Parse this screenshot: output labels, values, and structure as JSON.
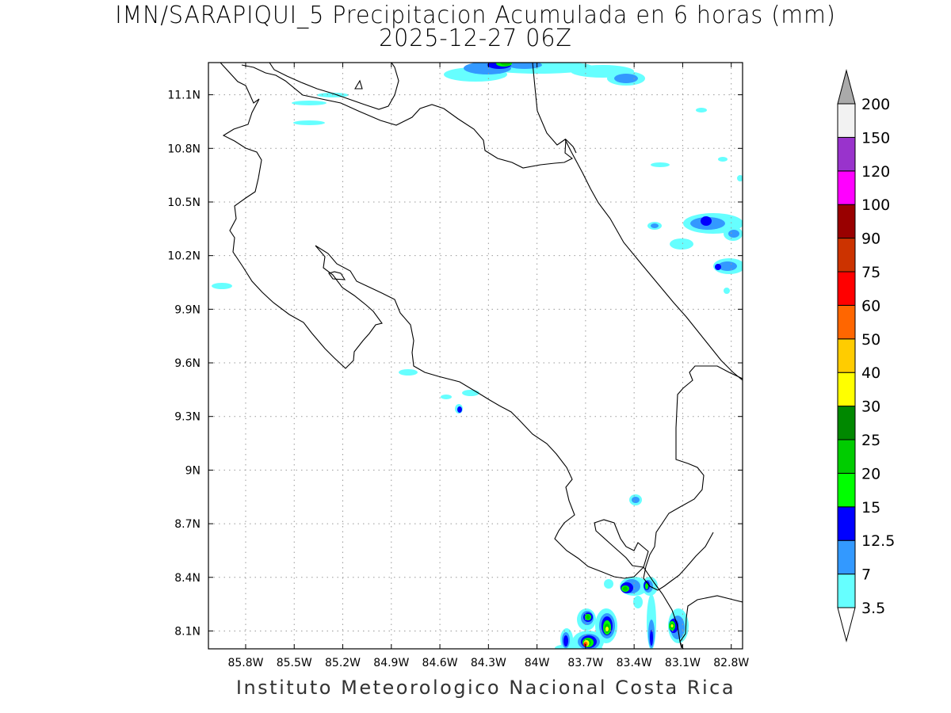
{
  "header": {
    "title": "IMN/SARAPIQUI_5 Precipitacion Acumulada en 6 horas (mm)",
    "subtitle": "2025-12-27 06Z"
  },
  "footer": {
    "credit": "Instituto Meteorologico Nacional Costa Rica"
  },
  "map": {
    "lon_range": [
      -86.03,
      -82.73
    ],
    "lat_range": [
      8.0,
      11.28
    ],
    "x_ticks": [
      {
        "value": -85.8,
        "label": "85.8W"
      },
      {
        "value": -85.5,
        "label": "85.5W"
      },
      {
        "value": -85.2,
        "label": "85.2W"
      },
      {
        "value": -84.9,
        "label": "84.9W"
      },
      {
        "value": -84.6,
        "label": "84.6W"
      },
      {
        "value": -84.3,
        "label": "84.3W"
      },
      {
        "value": -84.0,
        "label": "84W"
      },
      {
        "value": -83.7,
        "label": "83.7W"
      },
      {
        "value": -83.4,
        "label": "83.4W"
      },
      {
        "value": -83.1,
        "label": "83.1W"
      },
      {
        "value": -82.8,
        "label": "82.8W"
      }
    ],
    "y_ticks": [
      {
        "value": 11.1,
        "label": "11.1N"
      },
      {
        "value": 10.8,
        "label": "10.8N"
      },
      {
        "value": 10.5,
        "label": "10.5N"
      },
      {
        "value": 10.2,
        "label": "10.2N"
      },
      {
        "value": 9.9,
        "label": "9.9N"
      },
      {
        "value": 9.6,
        "label": "9.6N"
      },
      {
        "value": 9.3,
        "label": "9.3N"
      },
      {
        "value": 9.0,
        "label": "9N"
      },
      {
        "value": 8.7,
        "label": "8.7N"
      },
      {
        "value": 8.4,
        "label": "8.4N"
      },
      {
        "value": 8.1,
        "label": "8.1N"
      }
    ],
    "grid": true,
    "grid_style": "dotted",
    "coastline_color": "#000000"
  },
  "colorbar": {
    "levels": [
      {
        "label": "3.5",
        "color": "#66ffff"
      },
      {
        "label": "7",
        "color": "#3399ff"
      },
      {
        "label": "12.5",
        "color": "#0000ff"
      },
      {
        "label": "15",
        "color": "#00ff00"
      },
      {
        "label": "20",
        "color": "#00cc00"
      },
      {
        "label": "25",
        "color": "#008800"
      },
      {
        "label": "30",
        "color": "#ffff00"
      },
      {
        "label": "40",
        "color": "#ffcc00"
      },
      {
        "label": "50",
        "color": "#ff6600"
      },
      {
        "label": "60",
        "color": "#ff0000"
      },
      {
        "label": "75",
        "color": "#cc3300"
      },
      {
        "label": "90",
        "color": "#990000"
      },
      {
        "label": "100",
        "color": "#ff00ff"
      },
      {
        "label": "120",
        "color": "#9933cc"
      },
      {
        "label": "150",
        "color": "#f2f2f2"
      },
      {
        "label": "200",
        "color": "#aaaaaa"
      }
    ],
    "bins": [
      {
        "color": "#ffffff"
      },
      {
        "color": "#66ffff"
      },
      {
        "color": "#3399ff"
      },
      {
        "color": "#0000ff"
      },
      {
        "color": "#00ff00"
      },
      {
        "color": "#00cc00"
      },
      {
        "color": "#008800"
      },
      {
        "color": "#ffff00"
      },
      {
        "color": "#ffcc00"
      },
      {
        "color": "#ff6600"
      },
      {
        "color": "#ff0000"
      },
      {
        "color": "#cc3300"
      },
      {
        "color": "#990000"
      },
      {
        "color": "#ff00ff"
      },
      {
        "color": "#9933cc"
      },
      {
        "color": "#f2f2f2"
      },
      {
        "color": "#aaaaaa"
      }
    ]
  },
  "precip_cells": [
    {
      "lon": -84.03,
      "lat": 11.25,
      "value": 12.5
    },
    {
      "lon": -83.1,
      "lat": 11.23,
      "value": 7
    },
    {
      "lon": -82.9,
      "lat": 10.41,
      "value": 12.5
    },
    {
      "lon": -82.8,
      "lat": 10.15,
      "value": 12.5
    },
    {
      "lon": -84.36,
      "lat": 9.35,
      "value": 12.5
    },
    {
      "lon": -83.08,
      "lat": 8.85,
      "value": 7
    },
    {
      "lon": -83.31,
      "lat": 8.35,
      "value": 20
    },
    {
      "lon": -83.13,
      "lat": 8.35,
      "value": 20
    },
    {
      "lon": -83.53,
      "lat": 8.18,
      "value": 25
    },
    {
      "lon": -83.41,
      "lat": 8.13,
      "value": 30
    },
    {
      "lon": -83.53,
      "lat": 8.04,
      "value": 60
    },
    {
      "lon": -82.95,
      "lat": 8.13,
      "value": 30
    },
    {
      "lon": -83.67,
      "lat": 8.06,
      "value": 20
    },
    {
      "lon": -83.12,
      "lat": 8.06,
      "value": 15
    }
  ]
}
